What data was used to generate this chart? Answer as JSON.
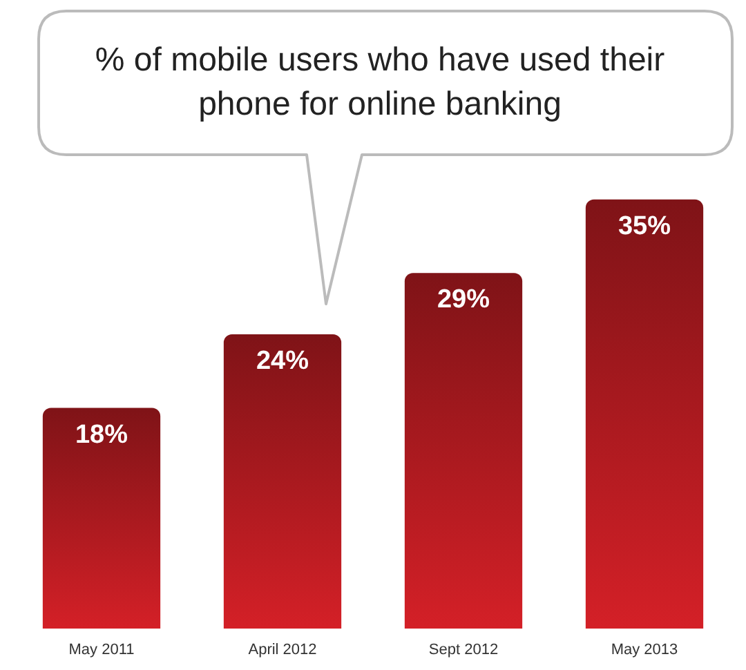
{
  "chart_data": {
    "type": "bar",
    "title": "% of mobile users who have used their phone for online banking",
    "categories": [
      "May 2011",
      "April 2012",
      "Sept 2012",
      "May 2013"
    ],
    "values": [
      18,
      24,
      29,
      35
    ],
    "value_labels": [
      "18%",
      "24%",
      "29%",
      "35%"
    ],
    "color": "#d42027"
  }
}
